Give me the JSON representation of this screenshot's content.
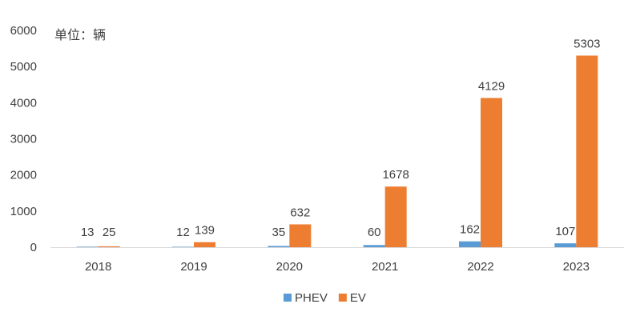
{
  "chart_data": {
    "type": "bar",
    "unit_label": "单位：辆",
    "categories": [
      "2018",
      "2019",
      "2020",
      "2021",
      "2022",
      "2023"
    ],
    "series": [
      {
        "name": "PHEV",
        "color": "#5b9bd5",
        "values": [
          13,
          12,
          35,
          60,
          162,
          107
        ]
      },
      {
        "name": "EV",
        "color": "#ed7d31",
        "values": [
          25,
          139,
          632,
          1678,
          4129,
          5303
        ]
      }
    ],
    "ylim": [
      0,
      6000
    ],
    "yticks": [
      0,
      1000,
      2000,
      3000,
      4000,
      5000,
      6000
    ],
    "grid": false,
    "legend_position": "bottom"
  }
}
